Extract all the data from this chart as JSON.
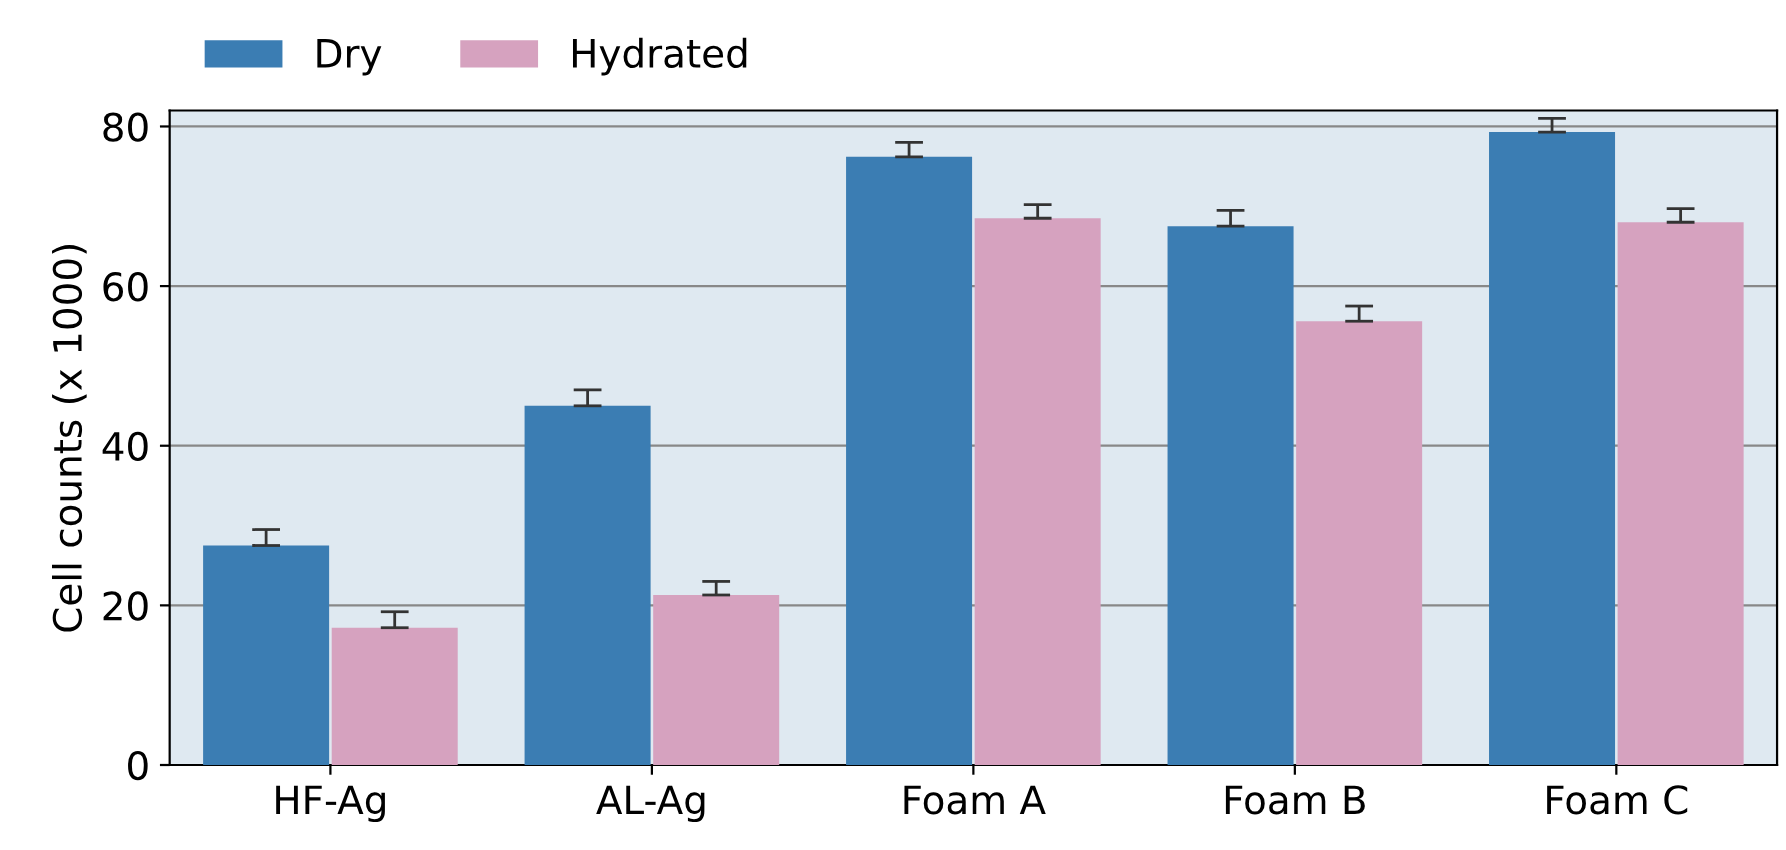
{
  "chart_data": {
    "type": "bar",
    "ylabel": "Cell counts (x 1000)",
    "categories": [
      "HF-Ag",
      "AL-Ag",
      "Foam A",
      "Foam B",
      "Foam C"
    ],
    "series": [
      {
        "name": "Dry",
        "color": "#3b7db3",
        "values": [
          27.5,
          45,
          76.2,
          67.5,
          79.3
        ],
        "errors": [
          [
            27.5,
            29.5
          ],
          [
            45,
            47
          ],
          [
            76.2,
            78
          ],
          [
            67.5,
            69.5
          ],
          [
            79.3,
            81
          ]
        ]
      },
      {
        "name": "Hydrated",
        "color": "#d6a2bf",
        "values": [
          17.2,
          21.3,
          68.5,
          55.6,
          68
        ],
        "errors": [
          [
            17.2,
            19.2
          ],
          [
            21.3,
            23
          ],
          [
            68.5,
            70.2
          ],
          [
            55.6,
            57.5
          ],
          [
            68,
            69.7
          ]
        ]
      }
    ],
    "ylim": [
      0,
      82
    ],
    "yticks": [
      0,
      20,
      40,
      60,
      80
    ],
    "grid": "y",
    "legend": "top left"
  }
}
